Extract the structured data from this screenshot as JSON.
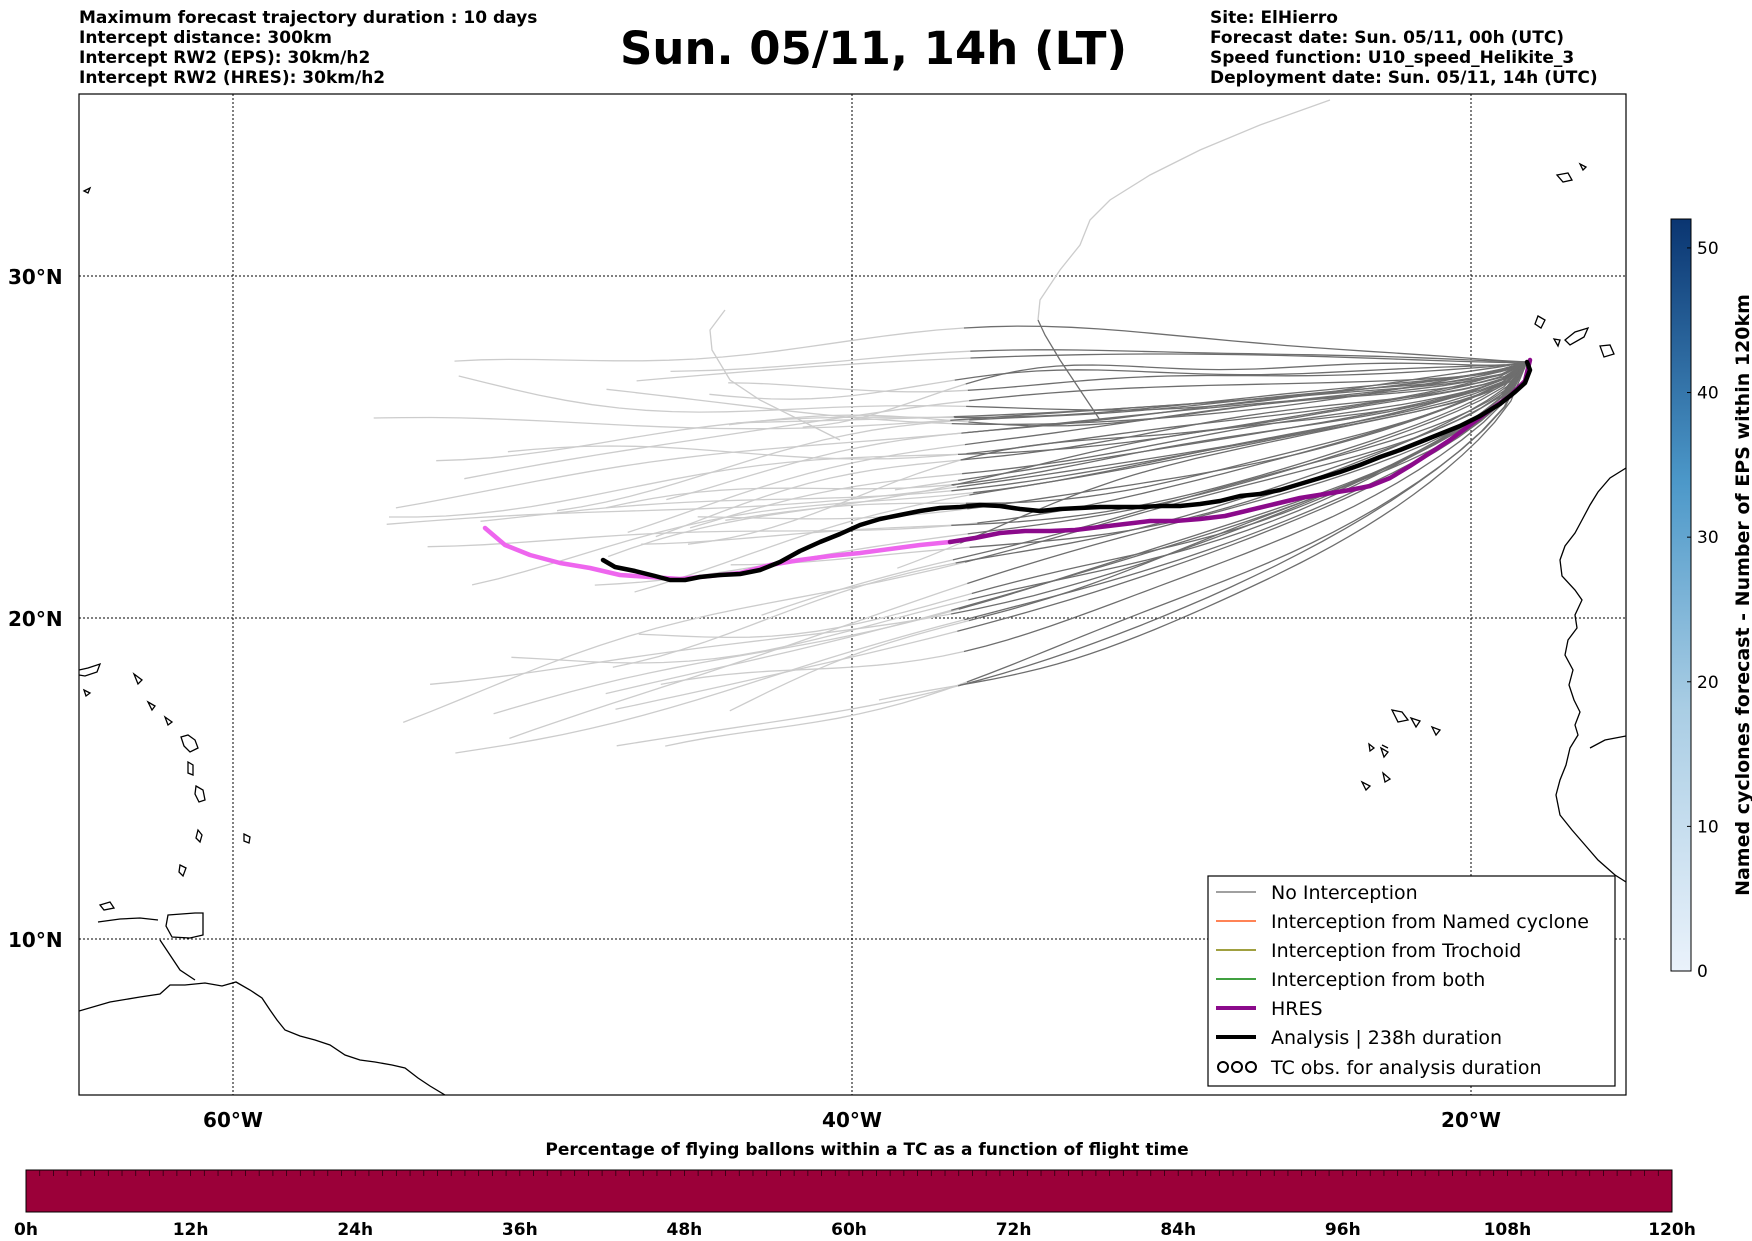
{
  "header": {
    "title": "Sun. 05/11, 14h (LT)",
    "left_lines": [
      "Maximum forecast trajectory duration : 10 days",
      "Intercept distance: 300km",
      "Intercept RW2 (EPS):  30km/h2",
      "Intercept RW2 (HRES): 30km/h2"
    ],
    "right_lines": [
      "Site: ElHierro",
      "Forecast date: Sun. 05/11, 00h (UTC)",
      "Speed function: U10_speed_Helikite_3",
      "Deployment date: Sun. 05/11, 14h (UTC)"
    ]
  },
  "map": {
    "lon_labels": [
      "60°W",
      "40°W",
      "20°W"
    ],
    "lat_labels": [
      "30°N",
      "20°N",
      "10°N"
    ],
    "colors": {
      "eps_light": "#cccccc",
      "eps_dark": "#6e6e6e",
      "hres_early": "#ee66ee",
      "hres": "#8b0a8b",
      "analysis": "#000000"
    }
  },
  "legend": {
    "items": [
      {
        "label": "No Interception",
        "color": "#808080"
      },
      {
        "label": "Interception from Named cyclone",
        "color": "#ff5a1f"
      },
      {
        "label": "Interception from Trochoid",
        "color": "#808000"
      },
      {
        "label": "Interception from both",
        "color": "#008000"
      },
      {
        "label": "HRES",
        "color": "#8b0a8b"
      },
      {
        "label": "Analysis | 238h duration",
        "color": "#000000"
      },
      {
        "label": "TC obs. for analysis duration",
        "color": "#000000"
      }
    ]
  },
  "colorbar_right": {
    "label": "Named cyclones forecast - Number of EPS within 120km",
    "ticks": [
      "0",
      "10",
      "20",
      "30",
      "40",
      "50"
    ],
    "max": 52
  },
  "colorbar_bottom": {
    "title": "Percentage of flying ballons within a TC as a function of flight time",
    "ticks": [
      "0h",
      "12h",
      "24h",
      "36h",
      "48h",
      "60h",
      "72h",
      "84h",
      "96h",
      "108h",
      "120h"
    ],
    "fill_color": "#9b0039"
  }
}
